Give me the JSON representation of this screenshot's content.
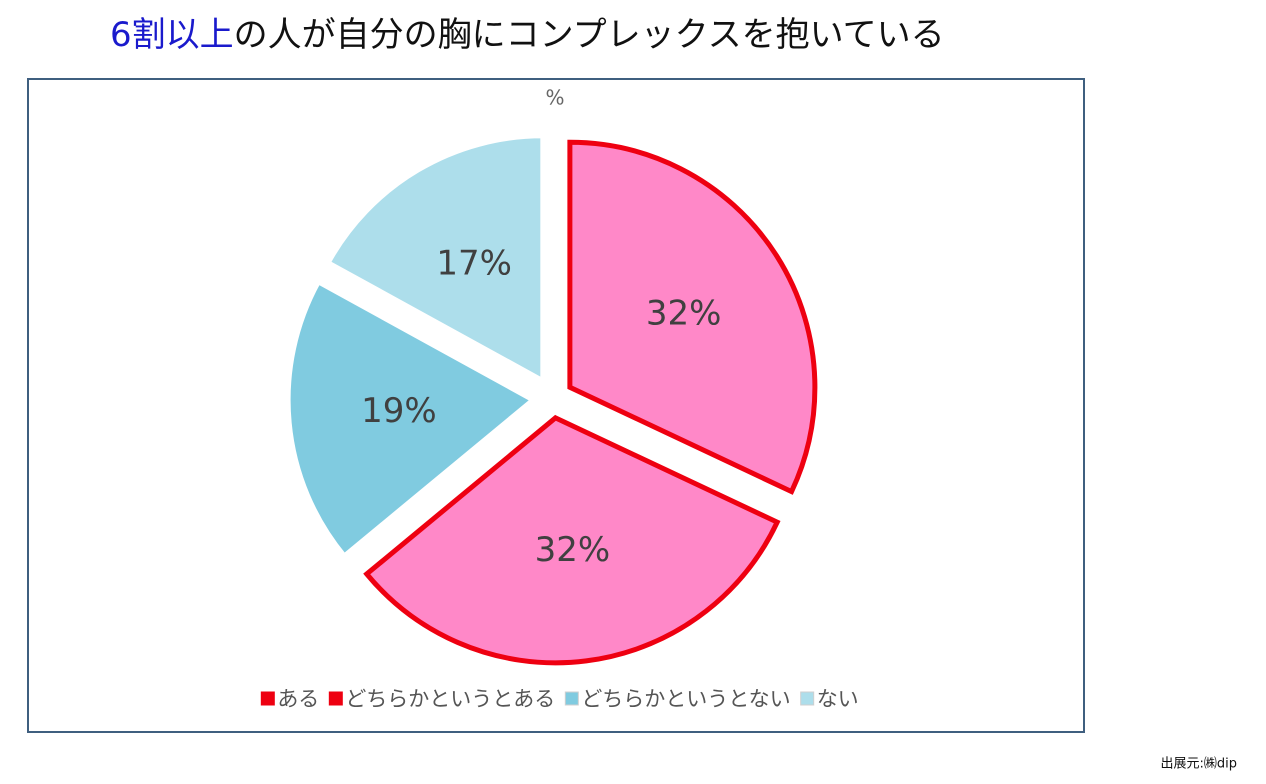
{
  "chart_data": {
    "type": "pie",
    "title": [
      "6割以上",
      "の人が自分の胸にコンプレックスを抱いている"
    ],
    "title_colors": [
      "#1a1acc",
      "#111111"
    ],
    "unit_label": "%",
    "categories": [
      "ある",
      "どちらかというとある",
      "どちらかというとない",
      "ない"
    ],
    "values": [
      32,
      32,
      19,
      17
    ],
    "value_labels": [
      "32%",
      "32%",
      "19%",
      "17%"
    ],
    "colors": [
      "#ff88c8",
      "#ff88c8",
      "#80cbe0",
      "#addeeb"
    ],
    "edge_colors": [
      "#ee0011",
      "#ee0011",
      "#ffffff",
      "#ffffff"
    ],
    "legend": "bottom",
    "source": "出展元:㈱dip"
  }
}
